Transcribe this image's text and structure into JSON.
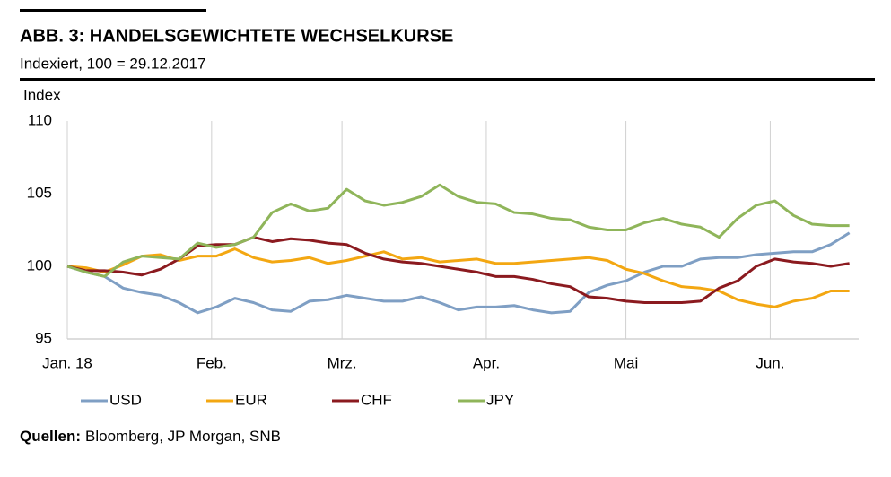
{
  "header": {
    "title": "ABB. 3: HANDELSGEWICHTETE  WECHSELKURSE",
    "subtitle": "Indexiert, 100 = 29.12.2017"
  },
  "chart_data": {
    "type": "line",
    "y_label": "Index",
    "x": [
      0,
      4,
      8,
      12,
      16,
      20,
      24,
      28,
      32,
      36,
      40,
      44,
      48,
      52,
      56,
      60,
      64,
      68,
      72,
      76,
      80,
      84,
      88,
      92,
      96,
      100,
      104,
      108,
      112,
      116,
      120,
      124,
      128,
      132,
      136,
      140,
      144,
      148,
      152,
      156,
      160,
      164,
      168
    ],
    "xlim": [
      0,
      170
    ],
    "xticks": [
      {
        "value": 0,
        "label": "Jan. 18"
      },
      {
        "value": 31,
        "label": "Feb."
      },
      {
        "value": 59,
        "label": "Mrz."
      },
      {
        "value": 90,
        "label": "Apr."
      },
      {
        "value": 120,
        "label": "Mai"
      },
      {
        "value": 151,
        "label": "Jun."
      }
    ],
    "ylim": [
      95,
      110
    ],
    "yticks": [
      95,
      100,
      105,
      110
    ],
    "grid": true,
    "legend": "bottom",
    "series": [
      {
        "name": "USD",
        "color": "#7f9fc4",
        "values": [
          100,
          99.6,
          99.3,
          98.5,
          98.2,
          98.0,
          97.5,
          96.8,
          97.2,
          97.8,
          97.5,
          97.0,
          96.9,
          97.6,
          97.7,
          98.0,
          97.8,
          97.6,
          97.6,
          97.9,
          97.5,
          97.0,
          97.2,
          97.2,
          97.3,
          97.0,
          96.8,
          96.9,
          98.2,
          98.7,
          99.0,
          99.6,
          100.0,
          100.0,
          100.5,
          100.6,
          100.6,
          100.8,
          100.9,
          101.0,
          101.0,
          101.5,
          102.3
        ]
      },
      {
        "name": "EUR",
        "color": "#f3a712",
        "values": [
          100,
          99.9,
          99.6,
          100.1,
          100.7,
          100.8,
          100.4,
          100.7,
          100.7,
          101.2,
          100.6,
          100.3,
          100.4,
          100.6,
          100.2,
          100.4,
          100.7,
          101.0,
          100.5,
          100.6,
          100.3,
          100.4,
          100.5,
          100.2,
          100.2,
          100.3,
          100.4,
          100.5,
          100.6,
          100.4,
          99.8,
          99.5,
          99.0,
          98.6,
          98.5,
          98.3,
          97.7,
          97.4,
          97.2,
          97.6,
          97.8,
          98.3,
          98.3
        ]
      },
      {
        "name": "CHF",
        "color": "#8b1a1f",
        "values": [
          100,
          99.7,
          99.7,
          99.6,
          99.4,
          99.8,
          100.5,
          101.4,
          101.5,
          101.5,
          102.0,
          101.7,
          101.9,
          101.8,
          101.6,
          101.5,
          100.9,
          100.5,
          100.3,
          100.2,
          100.0,
          99.8,
          99.6,
          99.3,
          99.3,
          99.1,
          98.8,
          98.6,
          97.9,
          97.8,
          97.6,
          97.5,
          97.5,
          97.5,
          97.6,
          98.5,
          99.0,
          100.0,
          100.5,
          100.3,
          100.2,
          100.0,
          100.2
        ]
      },
      {
        "name": "JPY",
        "color": "#8fb55a",
        "values": [
          100,
          99.6,
          99.3,
          100.3,
          100.7,
          100.6,
          100.5,
          101.6,
          101.3,
          101.5,
          102.0,
          103.7,
          104.3,
          103.8,
          104.0,
          105.3,
          104.5,
          104.2,
          104.4,
          104.8,
          105.6,
          104.8,
          104.4,
          104.3,
          103.7,
          103.6,
          103.3,
          103.2,
          102.7,
          102.5,
          102.5,
          103.0,
          103.3,
          102.9,
          102.7,
          102.0,
          103.3,
          104.2,
          104.5,
          103.5,
          102.9,
          102.8,
          102.8
        ]
      }
    ]
  },
  "footer": {
    "source_label": "Quellen:",
    "source": "Bloomberg, JP Morgan,  SNB"
  }
}
